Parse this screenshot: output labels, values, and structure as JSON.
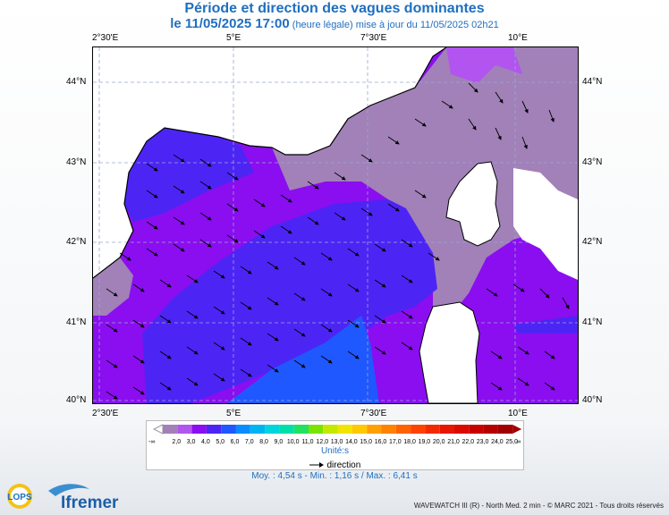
{
  "title": {
    "line1": "Période et direction des vagues dominantes",
    "line2_main": "le 11/05/2025 17:00",
    "line2_small": " (heure légale) mise à jour du 11/05/2025 02h21"
  },
  "map": {
    "lon_labels": [
      "2°30'E",
      "5°E",
      "7°30'E",
      "10°E"
    ],
    "lat_labels": [
      "44°N",
      "43°N",
      "42°N",
      "41°N",
      "40°N"
    ],
    "lon_range": [
      2.5,
      11.5
    ],
    "lat_range": [
      39.95,
      44.4
    ],
    "grid": true
  },
  "legend": {
    "ticks": [
      "2,0",
      "3,0",
      "4,0",
      "5,0",
      "6,0",
      "7,0",
      "8,0",
      "9,0",
      "10,0",
      "11,0",
      "12,0",
      "13,0",
      "14,0",
      "15,0",
      "16,0",
      "17,0",
      "18,0",
      "19,0",
      "20,0",
      "21,0",
      "22,0",
      "23,0",
      "24,0",
      "25,0"
    ],
    "colors": [
      "#a181b8",
      "#b254f0",
      "#8a0eef",
      "#4c25f5",
      "#1f58ff",
      "#0a8cff",
      "#00b4f0",
      "#00d4dc",
      "#00dfa8",
      "#22e060",
      "#7ae400",
      "#c4e800",
      "#f2e400",
      "#ffc800",
      "#ffa000",
      "#ff8200",
      "#ff6200",
      "#ff4200",
      "#f32a00",
      "#e81500",
      "#db0a00",
      "#c80000",
      "#b50000",
      "#a00000"
    ],
    "under_symbol": "-∞",
    "over_symbol": "∞",
    "unit": "Unité:s"
  },
  "direction_label": "direction",
  "stats": "Moy. : 4,54 s  -  Min. : 1,16 s / Max. : 6,41 s",
  "footer": "WAVEWATCH III (R) - North Med. 2 min - © MARC 2021 - Tous droits réservés",
  "logos": {
    "lops": "LOPS",
    "ifremer": "Ifremer"
  }
}
